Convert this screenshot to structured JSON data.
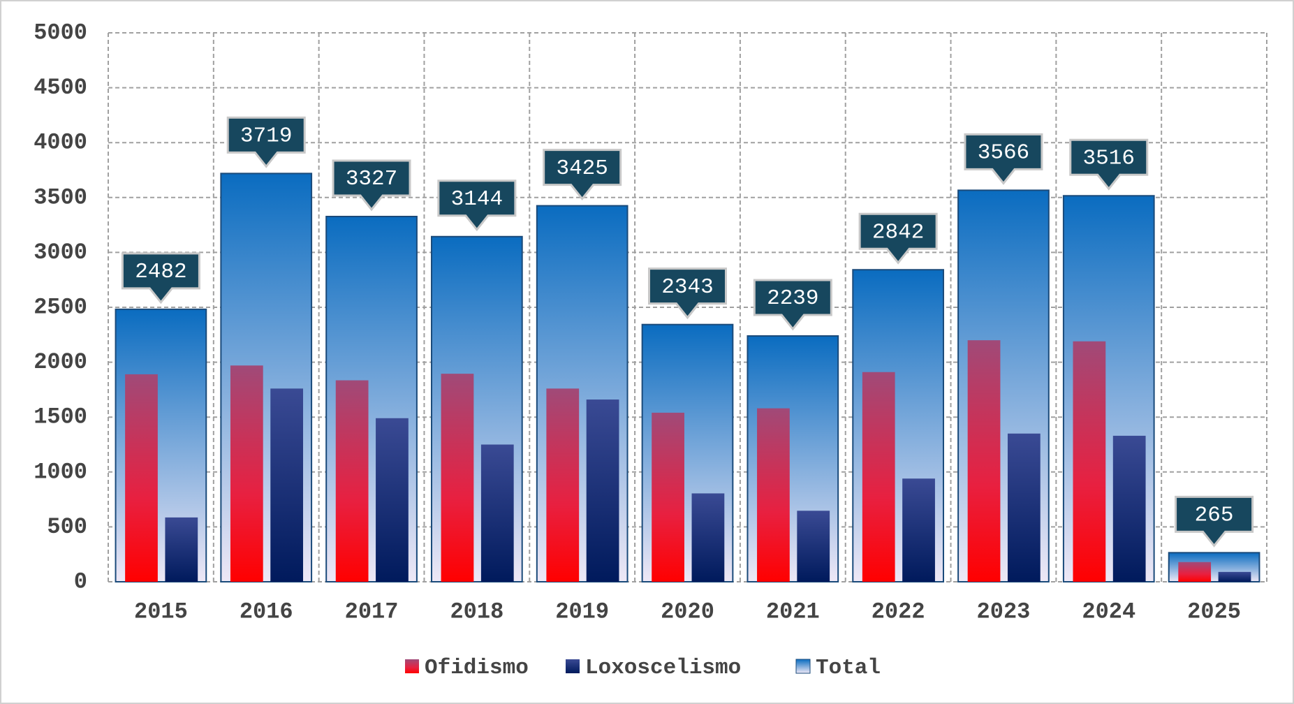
{
  "chart_data": {
    "type": "bar",
    "categories": [
      "2015",
      "2016",
      "2017",
      "2018",
      "2019",
      "2020",
      "2021",
      "2022",
      "2023",
      "2024",
      "2025"
    ],
    "series": [
      {
        "name": "Ofidismo",
        "color": "#ff0000",
        "values": [
          1890,
          1970,
          1835,
          1895,
          1760,
          1540,
          1580,
          1910,
          2200,
          2190,
          180
        ]
      },
      {
        "name": "Loxoscelismo",
        "color": "#001a5c",
        "values": [
          586,
          1760,
          1490,
          1250,
          1660,
          805,
          647,
          940,
          1350,
          1330,
          90
        ]
      },
      {
        "name": "Total",
        "color": "#0a6cc0",
        "values": [
          2482,
          3719,
          3327,
          3144,
          3425,
          2343,
          2239,
          2842,
          3566,
          3516,
          265
        ]
      }
    ],
    "ylim": [
      0,
      5000
    ],
    "yticks": [
      0,
      500,
      1000,
      1500,
      2000,
      2500,
      3000,
      3500,
      4000,
      4500,
      5000
    ],
    "grid": true,
    "legend": "bottom"
  }
}
